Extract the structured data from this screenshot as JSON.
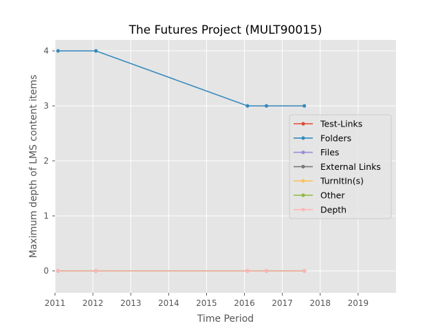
{
  "chart_data": {
    "type": "line",
    "title": "The Futures Project (MULT90015)",
    "xlabel": "Time Period",
    "ylabel": "Maximum depth of LMS content items",
    "xlim": [
      2011,
      2020
    ],
    "ylim": [
      -0.4,
      4.2
    ],
    "x_ticks": [
      "2011",
      "2012",
      "2013",
      "2014",
      "2015",
      "2016",
      "2017",
      "2018",
      "2019"
    ],
    "y_ticks": [
      "0",
      "1",
      "2",
      "3",
      "4"
    ],
    "x": [
      2011.08,
      2012.08,
      2016.08,
      2016.58,
      2017.58
    ],
    "grid": true,
    "legend_position": "center-right",
    "series": [
      {
        "name": "Test-Links",
        "color": "#E24A33",
        "values": [
          0,
          0,
          0,
          0,
          0
        ]
      },
      {
        "name": "Folders",
        "color": "#348ABD",
        "values": [
          4,
          4,
          3,
          3,
          3
        ]
      },
      {
        "name": "Files",
        "color": "#988ED5",
        "values": [
          0,
          0,
          0,
          0,
          0
        ]
      },
      {
        "name": "External Links",
        "color": "#777777",
        "values": [
          0,
          0,
          0,
          0,
          0
        ]
      },
      {
        "name": "TurnItIn(s)",
        "color": "#FBC15E",
        "values": [
          0,
          0,
          0,
          0,
          0
        ]
      },
      {
        "name": "Other",
        "color": "#8EBA42",
        "values": [
          0,
          0,
          0,
          0,
          0
        ]
      },
      {
        "name": "Depth",
        "color": "#FFB5B8",
        "values": [
          0,
          0,
          0,
          0,
          0
        ]
      }
    ]
  }
}
